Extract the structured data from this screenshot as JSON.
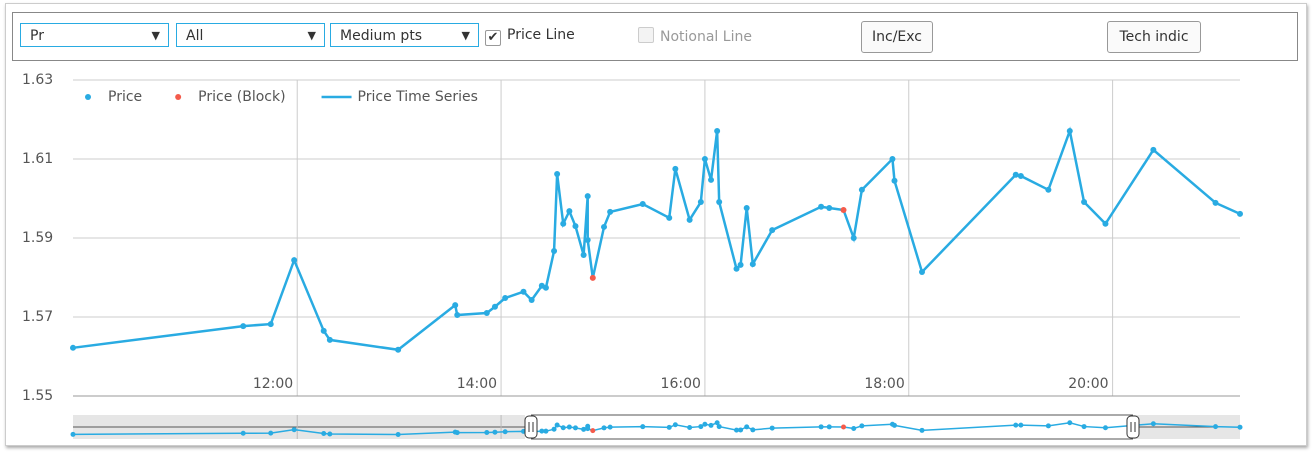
{
  "toolbar": {
    "selects": [
      "Pr",
      "All",
      "Medium pts"
    ],
    "checkboxes": [
      "Price Line",
      "Notional Line"
    ],
    "buttons": [
      "Inc/Exc",
      "Tech indic"
    ]
  },
  "chart_data": {
    "type": "line",
    "xlim": [
      9.8,
      21.25
    ],
    "xticks": [
      {
        "value": 12,
        "label": "12:00"
      },
      {
        "value": 14,
        "label": "14:00"
      },
      {
        "value": 16,
        "label": "16:00"
      },
      {
        "value": 18,
        "label": "18:00"
      },
      {
        "value": 20,
        "label": "20:00"
      }
    ],
    "ylim": [
      1.55,
      1.63
    ],
    "yticks": [
      1.55,
      1.57,
      1.59,
      1.61,
      1.63
    ],
    "grid": true,
    "legend": "top-left",
    "series": [
      {
        "name": "Price",
        "mode": "markers",
        "color": "#29abe2",
        "x": [
          9.8,
          11.47,
          11.74,
          11.97,
          12.26,
          12.32,
          12.99,
          13.55,
          13.57,
          13.86,
          13.94,
          14.04,
          14.22,
          14.3,
          14.4,
          14.44,
          14.52,
          14.55,
          14.61,
          14.67,
          14.73,
          14.81,
          14.85,
          14.85,
          15.01,
          15.07,
          15.39,
          15.65,
          15.71,
          15.85,
          15.96,
          16.0,
          16.06,
          16.12,
          16.14,
          16.31,
          16.35,
          16.41,
          16.47,
          16.66,
          17.14,
          17.22,
          17.46,
          17.54,
          17.84,
          17.86,
          18.13,
          19.05,
          19.1,
          19.37,
          19.58,
          19.72,
          19.93,
          20.4,
          21.01,
          21.25
        ],
        "values": [
          1.5622,
          1.5677,
          1.5682,
          1.5844,
          1.5665,
          1.5642,
          1.5617,
          1.573,
          1.5705,
          1.571,
          1.5726,
          1.5748,
          1.5764,
          1.5743,
          1.5779,
          1.5774,
          1.5867,
          1.6062,
          1.5936,
          1.5968,
          1.593,
          1.5857,
          1.6006,
          1.5895,
          1.5928,
          1.5966,
          1.5986,
          1.5951,
          1.6075,
          1.5946,
          1.5991,
          1.61,
          1.6047,
          1.6171,
          1.5991,
          1.5822,
          1.5832,
          1.5976,
          1.5834,
          1.592,
          1.5979,
          1.5976,
          1.59,
          1.6022,
          1.61,
          1.6045,
          1.5814,
          1.606,
          1.6057,
          1.6022,
          1.6171,
          1.5991,
          1.5936,
          1.6123,
          1.5989,
          1.5961
        ]
      },
      {
        "name": "Price (Block)",
        "mode": "markers",
        "color": "#f45b4b",
        "x": [
          14.9,
          17.36
        ],
        "values": [
          1.5799,
          1.5971
        ]
      },
      {
        "name": "Price Time Series",
        "mode": "line",
        "color": "#29abe2",
        "x": [
          9.8,
          11.47,
          11.74,
          11.97,
          12.26,
          12.32,
          12.99,
          13.55,
          13.57,
          13.86,
          13.94,
          14.04,
          14.22,
          14.3,
          14.4,
          14.44,
          14.52,
          14.55,
          14.61,
          14.67,
          14.73,
          14.81,
          14.85,
          14.85,
          14.9,
          15.01,
          15.07,
          15.39,
          15.65,
          15.71,
          15.85,
          15.96,
          16.0,
          16.06,
          16.12,
          16.14,
          16.31,
          16.35,
          16.41,
          16.47,
          16.66,
          17.14,
          17.22,
          17.36,
          17.46,
          17.54,
          17.84,
          17.86,
          18.13,
          19.05,
          19.1,
          19.37,
          19.58,
          19.72,
          19.93,
          20.4,
          21.01,
          21.25
        ],
        "values": [
          1.5622,
          1.5677,
          1.5682,
          1.5844,
          1.5665,
          1.5642,
          1.5617,
          1.573,
          1.5705,
          1.571,
          1.5726,
          1.5748,
          1.5764,
          1.5743,
          1.5779,
          1.5774,
          1.5867,
          1.6062,
          1.5936,
          1.5968,
          1.593,
          1.5857,
          1.6006,
          1.5895,
          1.5799,
          1.5928,
          1.5966,
          1.5986,
          1.5951,
          1.6075,
          1.5946,
          1.5991,
          1.61,
          1.6047,
          1.6171,
          1.5991,
          1.5822,
          1.5832,
          1.5976,
          1.5834,
          1.592,
          1.5979,
          1.5976,
          1.5971,
          1.59,
          1.6022,
          1.61,
          1.6045,
          1.5814,
          1.606,
          1.6057,
          1.6022,
          1.6171,
          1.5991,
          1.5936,
          1.6123,
          1.5989,
          1.5961
        ]
      }
    ]
  }
}
